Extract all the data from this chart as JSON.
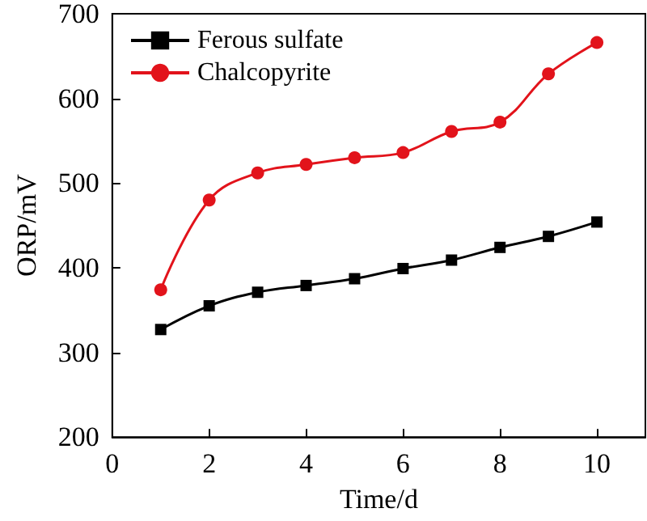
{
  "chart_data": {
    "type": "line",
    "xlabel": "Time/d",
    "ylabel": "ORP/mV",
    "x": [
      1,
      2,
      3,
      4,
      5,
      6,
      7,
      8,
      9,
      10
    ],
    "series": [
      {
        "name": "Ferous sulfate",
        "color": "#000000",
        "marker": "square",
        "values": [
          327,
          355,
          371,
          379,
          387,
          399,
          409,
          424,
          437,
          454
        ]
      },
      {
        "name": "Chalcopyrite",
        "color": "#e2131b",
        "marker": "circle",
        "values": [
          374,
          480,
          512,
          522,
          530,
          536,
          561,
          572,
          629,
          666
        ]
      }
    ],
    "xlim": [
      0,
      11
    ],
    "xticks": [
      0,
      2,
      4,
      6,
      8,
      10
    ],
    "ylim": [
      200,
      700
    ],
    "yticks": [
      200,
      300,
      400,
      500,
      600,
      700
    ],
    "grid": false,
    "legend": "top left",
    "line_style": "solid"
  }
}
